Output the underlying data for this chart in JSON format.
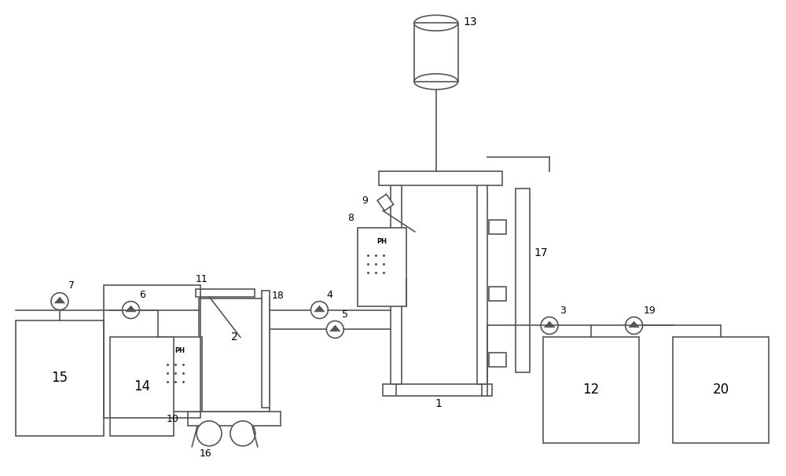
{
  "bg_color": "#ffffff",
  "line_color": "#555555",
  "line_width": 1.2,
  "figure_width": 10.0,
  "figure_height": 6.06,
  "dpi": 100
}
